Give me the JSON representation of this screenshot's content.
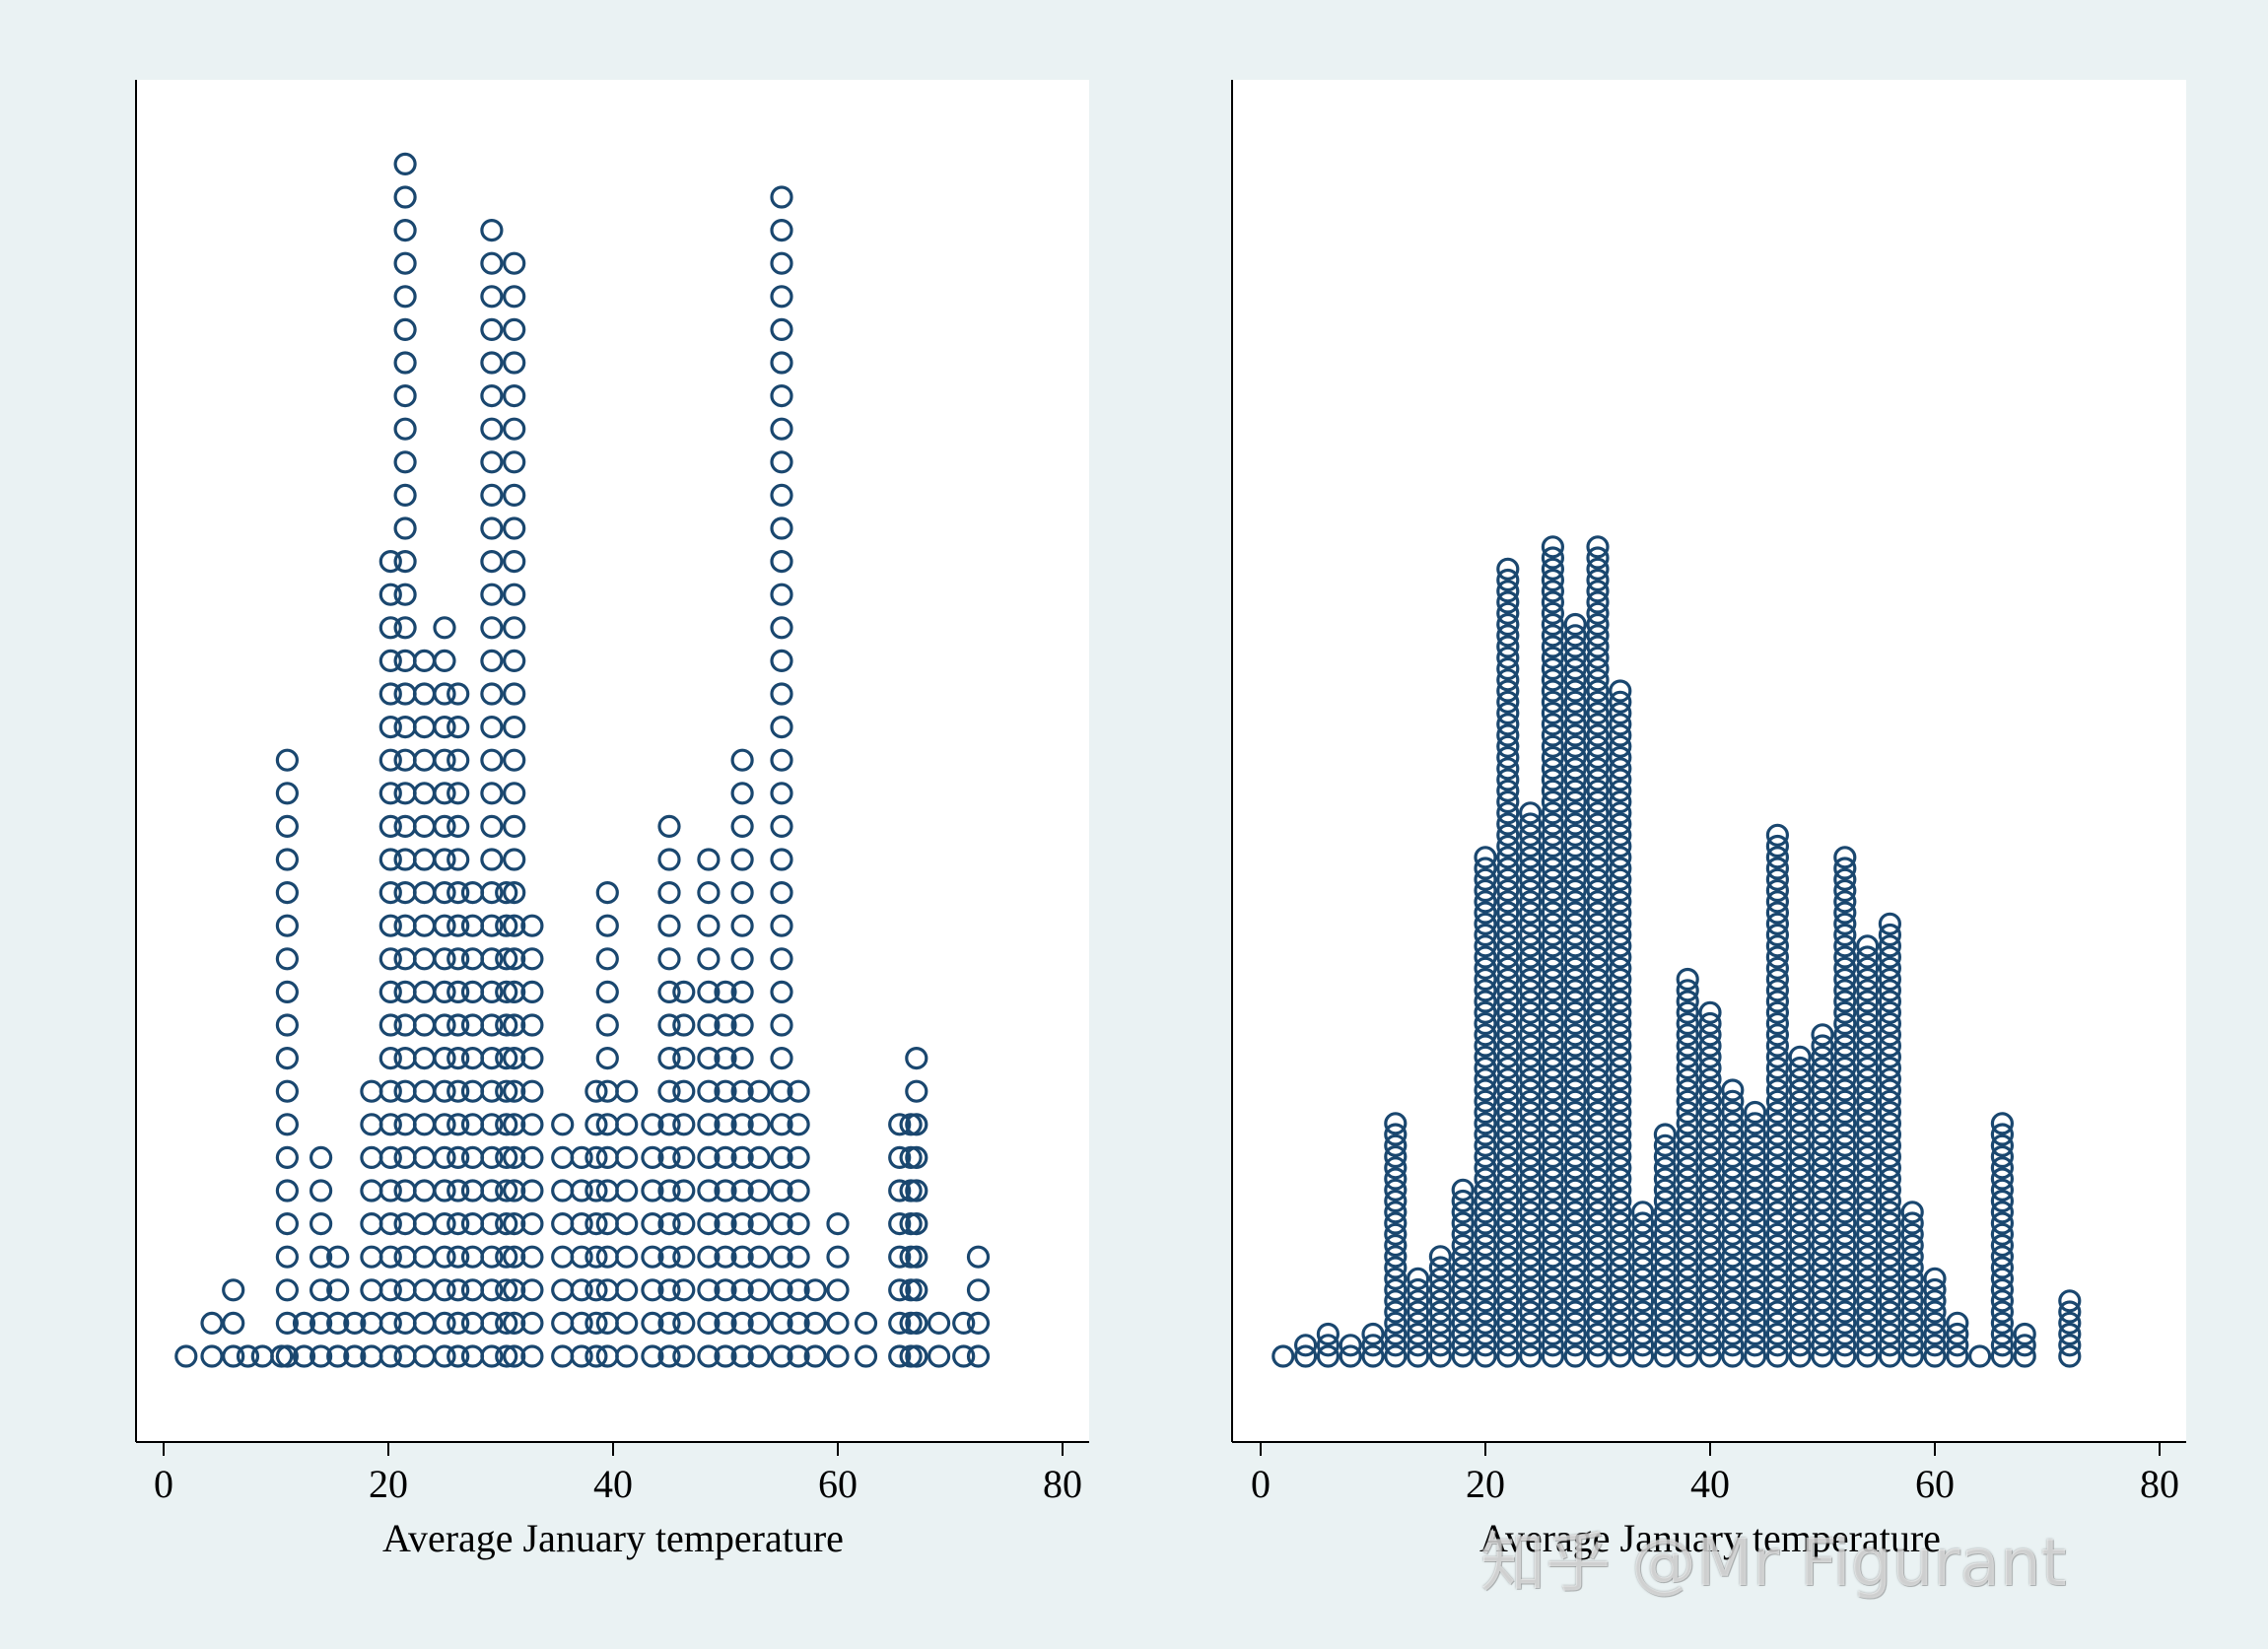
{
  "chart_data": [
    {
      "type": "dotplot",
      "xlabel": "Average January temperature",
      "xticks": [
        0,
        20,
        40,
        60,
        80
      ],
      "xlim": [
        -3,
        82
      ],
      "grid": false,
      "marker": "hollow circle",
      "color": "#1a476f",
      "columns": [
        {
          "x": 2,
          "count": 1
        },
        {
          "x": 4.3,
          "count": 2
        },
        {
          "x": 6.2,
          "count": 3
        },
        {
          "x": 7.5,
          "count": 1
        },
        {
          "x": 8.8,
          "count": 1
        },
        {
          "x": 10.5,
          "count": 1
        },
        {
          "x": 11,
          "count": 19
        },
        {
          "x": 12.5,
          "count": 2
        },
        {
          "x": 14,
          "count": 7
        },
        {
          "x": 15.5,
          "count": 4
        },
        {
          "x": 17,
          "count": 2
        },
        {
          "x": 18.5,
          "count": 9
        },
        {
          "x": 20.2,
          "count": 25
        },
        {
          "x": 21.5,
          "count": 37
        },
        {
          "x": 23.2,
          "count": 22
        },
        {
          "x": 25,
          "count": 23
        },
        {
          "x": 26.2,
          "count": 21
        },
        {
          "x": 27.5,
          "count": 15
        },
        {
          "x": 29.2,
          "count": 35
        },
        {
          "x": 30.5,
          "count": 15
        },
        {
          "x": 31.2,
          "count": 34
        },
        {
          "x": 32.8,
          "count": 14
        },
        {
          "x": 35.5,
          "count": 8
        },
        {
          "x": 37.2,
          "count": 7
        },
        {
          "x": 38.5,
          "count": 9
        },
        {
          "x": 39.5,
          "count": 15
        },
        {
          "x": 41.2,
          "count": 9
        },
        {
          "x": 43.5,
          "count": 8
        },
        {
          "x": 45,
          "count": 17
        },
        {
          "x": 46.3,
          "count": 12
        },
        {
          "x": 48.5,
          "count": 16
        },
        {
          "x": 50,
          "count": 12
        },
        {
          "x": 51.5,
          "count": 19
        },
        {
          "x": 53,
          "count": 9
        },
        {
          "x": 55,
          "count": 36
        },
        {
          "x": 56.5,
          "count": 9
        },
        {
          "x": 58,
          "count": 3
        },
        {
          "x": 60,
          "count": 5
        },
        {
          "x": 62.5,
          "count": 2
        },
        {
          "x": 65.5,
          "count": 8
        },
        {
          "x": 66.5,
          "count": 8
        },
        {
          "x": 67,
          "count": 10
        },
        {
          "x": 69,
          "count": 2
        },
        {
          "x": 71.2,
          "count": 2
        },
        {
          "x": 72.5,
          "count": 4
        }
      ]
    },
    {
      "type": "dotplot",
      "xlabel": "Average January temperature",
      "xticks": [
        0,
        20,
        40,
        60,
        80
      ],
      "xlim": [
        -3,
        82
      ],
      "grid": false,
      "marker": "hollow circle",
      "color": "#1a476f",
      "columns": [
        {
          "x": 2,
          "count": 1
        },
        {
          "x": 4,
          "count": 2
        },
        {
          "x": 6,
          "count": 3
        },
        {
          "x": 8,
          "count": 2
        },
        {
          "x": 10,
          "count": 3
        },
        {
          "x": 12,
          "count": 22
        },
        {
          "x": 14,
          "count": 8
        },
        {
          "x": 16,
          "count": 10
        },
        {
          "x": 18,
          "count": 16
        },
        {
          "x": 20,
          "count": 46
        },
        {
          "x": 22,
          "count": 72
        },
        {
          "x": 24,
          "count": 50
        },
        {
          "x": 26,
          "count": 74
        },
        {
          "x": 28,
          "count": 67
        },
        {
          "x": 30,
          "count": 74
        },
        {
          "x": 32,
          "count": 61
        },
        {
          "x": 34,
          "count": 14
        },
        {
          "x": 36,
          "count": 21
        },
        {
          "x": 38,
          "count": 35
        },
        {
          "x": 40,
          "count": 32
        },
        {
          "x": 42,
          "count": 25
        },
        {
          "x": 44,
          "count": 23
        },
        {
          "x": 46,
          "count": 48
        },
        {
          "x": 48,
          "count": 28
        },
        {
          "x": 50,
          "count": 30
        },
        {
          "x": 52,
          "count": 46
        },
        {
          "x": 54,
          "count": 38
        },
        {
          "x": 56,
          "count": 40
        },
        {
          "x": 58,
          "count": 14
        },
        {
          "x": 60,
          "count": 8
        },
        {
          "x": 62,
          "count": 4
        },
        {
          "x": 64,
          "count": 1
        },
        {
          "x": 66,
          "count": 22
        },
        {
          "x": 68,
          "count": 3
        },
        {
          "x": 72,
          "count": 6
        }
      ]
    }
  ],
  "watermark": "知乎 @Mr Figurant"
}
